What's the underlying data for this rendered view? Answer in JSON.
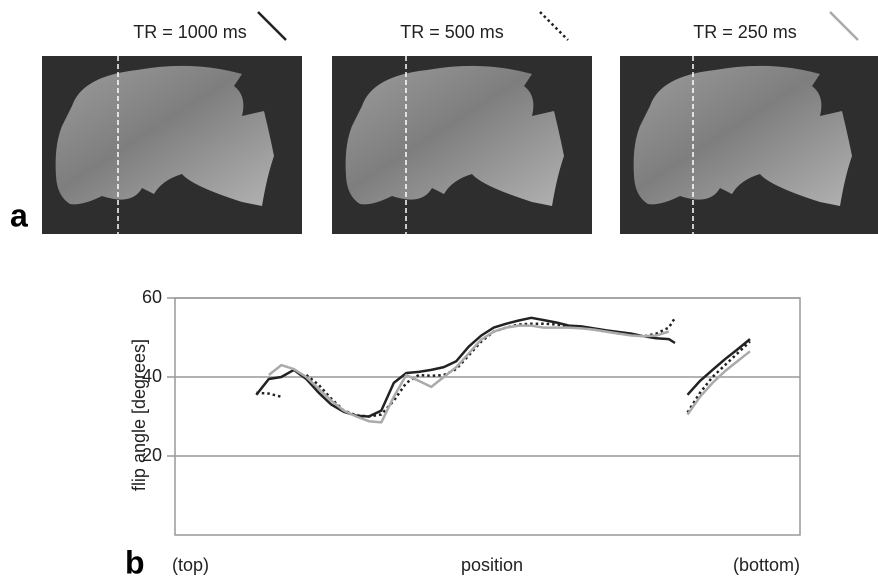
{
  "chart_data": {
    "type": "line",
    "panel_labels": [
      "a",
      "b"
    ],
    "ylabel": "flip angle [degrees]",
    "xlabel": "position",
    "x_start_label": "(top)",
    "x_end_label": "(bottom)",
    "ylim": [
      0,
      60
    ],
    "yticks": [
      20,
      40,
      60
    ],
    "xlim": [
      0,
      100
    ],
    "grid": true,
    "x": [
      13,
      15,
      17,
      19,
      21,
      23,
      25,
      27,
      29,
      31,
      33,
      35,
      37,
      39,
      41,
      43,
      45,
      47,
      49,
      51,
      53,
      55,
      57,
      59,
      61,
      63,
      65,
      67,
      69,
      71,
      73,
      75,
      77,
      79,
      80,
      81,
      82,
      84,
      86,
      88,
      90,
      92
    ],
    "series": [
      {
        "name": "TR = 1000 ms",
        "color": "#222222",
        "style": "solid",
        "values": [
          35.5,
          39.5,
          40,
          41.8,
          39.5,
          36,
          33,
          31.2,
          30.2,
          30,
          31.5,
          38.5,
          41,
          41.3,
          41.8,
          42.5,
          44,
          47.7,
          50.5,
          52.5,
          53.5,
          54.3,
          55,
          54.4,
          53.8,
          53,
          52.8,
          52.3,
          51.8,
          51.4,
          51,
          50.3,
          49.8,
          49.6,
          48.6,
          null,
          35.5,
          39,
          41.8,
          44.5,
          47,
          49.6
        ]
      },
      {
        "name": "TR = 500 ms",
        "color": "#222222",
        "style": "dotted",
        "values": [
          36,
          35.8,
          35,
          null,
          40.5,
          38,
          34.5,
          31.5,
          30.3,
          30,
          30.5,
          34,
          38.5,
          40.5,
          40.3,
          40.5,
          42,
          45.5,
          49,
          51.5,
          52.5,
          53.3,
          53.5,
          53.5,
          53.3,
          52.8,
          52.5,
          52,
          51.5,
          51,
          50.7,
          50.3,
          51,
          52.5,
          55,
          null,
          31,
          36,
          40,
          43,
          46,
          49
        ]
      },
      {
        "name": "TR = 250 ms",
        "color": "#aaaaaa",
        "style": "solid",
        "values": [
          null,
          40.5,
          43,
          42,
          40,
          37,
          34,
          31.5,
          30,
          28.8,
          28.5,
          35,
          40.5,
          39,
          37.5,
          40,
          42.5,
          46,
          49.5,
          51.5,
          52.5,
          53,
          53,
          52.5,
          52.5,
          52.5,
          52.3,
          52,
          51.5,
          51,
          50.5,
          50.3,
          50.5,
          51.5,
          null,
          null,
          30.5,
          35,
          38.5,
          41.5,
          44,
          46.5
        ]
      }
    ]
  }
}
